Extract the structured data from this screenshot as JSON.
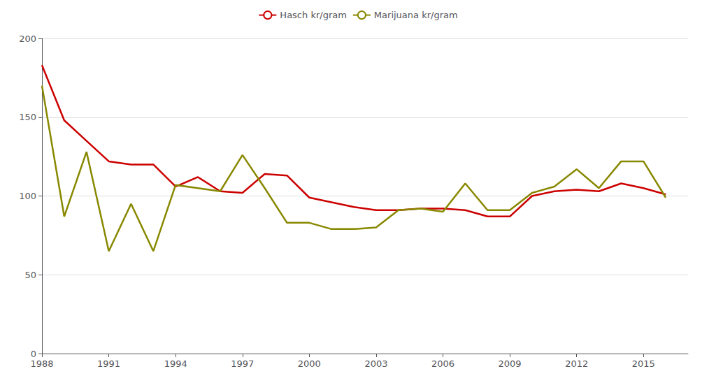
{
  "chart_data": {
    "type": "line",
    "x": [
      1988,
      1989,
      1990,
      1991,
      1992,
      1993,
      1994,
      1995,
      1996,
      1997,
      1998,
      1999,
      2000,
      2001,
      2002,
      2003,
      2004,
      2005,
      2006,
      2007,
      2008,
      2009,
      2010,
      2011,
      2012,
      2013,
      2014,
      2015,
      2016
    ],
    "series": [
      {
        "name": "Hasch kr/gram",
        "color": "#cc0000",
        "values": [
          183,
          148,
          135,
          122,
          120,
          120,
          106,
          112,
          103,
          102,
          114,
          113,
          99,
          96,
          93,
          91,
          91,
          92,
          92,
          91,
          87,
          87,
          100,
          103,
          104,
          103,
          108,
          105,
          101
        ]
      },
      {
        "name": "Marijuana kr/gram",
        "color": "#888800",
        "values": [
          170,
          87,
          128,
          65,
          95,
          65,
          107,
          105,
          103,
          126,
          105,
          83,
          83,
          79,
          79,
          80,
          91,
          92,
          90,
          108,
          91,
          91,
          102,
          106,
          117,
          105,
          122,
          122,
          99
        ]
      }
    ],
    "xlim": [
      1988,
      2017
    ],
    "xticks": [
      1988,
      1991,
      1994,
      1997,
      2000,
      2003,
      2006,
      2009,
      2012,
      2015
    ],
    "ylim": [
      0,
      200
    ],
    "yticks": [
      0,
      50,
      100,
      150,
      200
    ],
    "grid": true,
    "legend": "top"
  }
}
